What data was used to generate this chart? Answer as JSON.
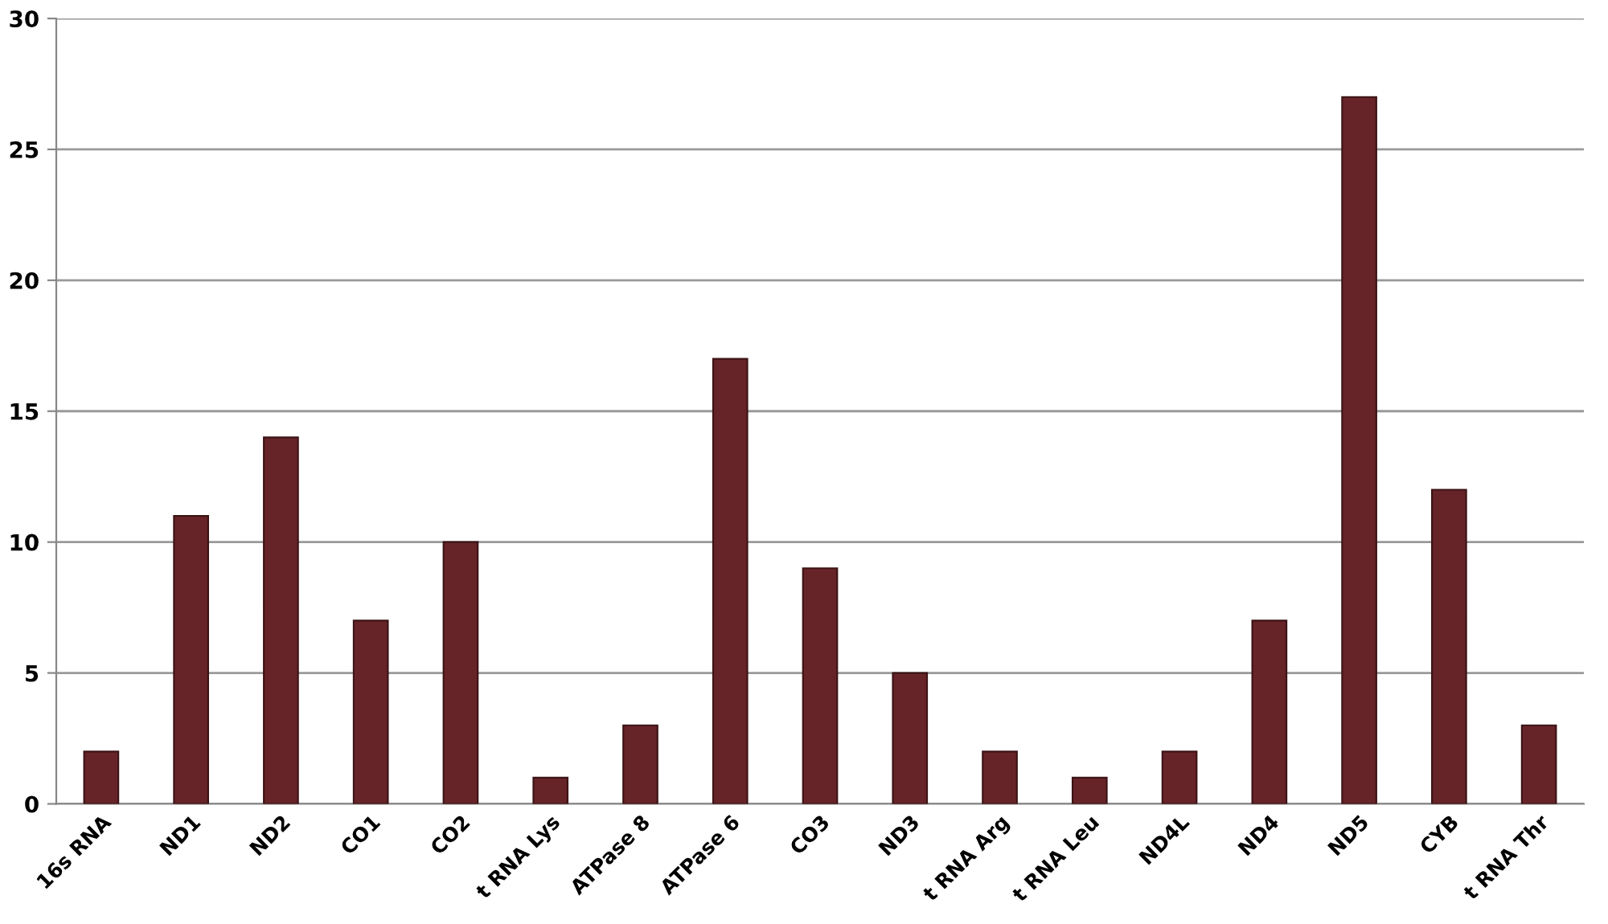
{
  "chart_data": {
    "type": "bar",
    "categories": [
      "16s RNA",
      "ND1",
      "ND2",
      "CO1",
      "CO2",
      "t RNA Lys",
      "ATPase 8",
      "ATPase 6",
      "CO3",
      "ND3",
      "t RNA Arg",
      "t RNA Leu",
      "ND4L",
      "ND4",
      "ND5",
      "CYB",
      "t RNA Thr"
    ],
    "values": [
      2,
      11,
      14,
      7,
      10,
      1,
      3,
      17,
      9,
      5,
      2,
      1,
      2,
      7,
      27,
      12,
      3
    ],
    "color": "#672428",
    "ylim": [
      0,
      30
    ],
    "yticks": [
      0,
      5,
      10,
      15,
      20,
      25,
      30
    ],
    "grid": "y"
  }
}
